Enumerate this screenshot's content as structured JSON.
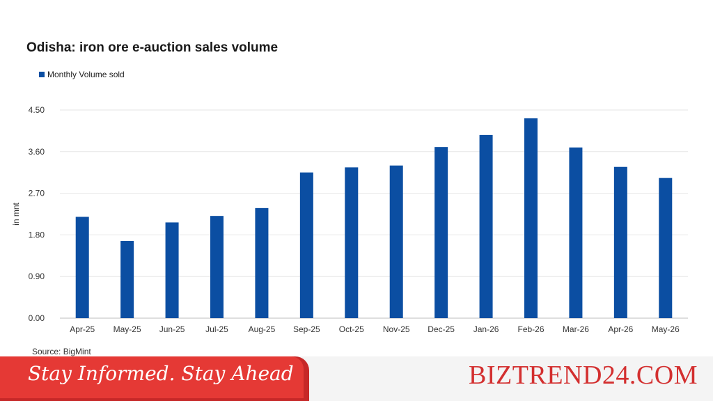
{
  "chart_data": {
    "type": "bar",
    "title": "Odisha: iron ore e-auction sales volume",
    "ylabel": "in mnt",
    "xlabel": "",
    "source": "Source: BigMint",
    "categories": [
      "Apr-25",
      "May-25",
      "Jun-25",
      "Jul-25",
      "Aug-25",
      "Sep-25",
      "Oct-25",
      "Nov-25",
      "Dec-25",
      "Jan-26",
      "Feb-26",
      "Mar-26",
      "Apr-26",
      "May-26"
    ],
    "series": [
      {
        "name": "Monthly Volume sold",
        "values": [
          2.19,
          1.67,
          2.07,
          2.21,
          2.38,
          3.15,
          3.26,
          3.3,
          3.7,
          3.96,
          4.32,
          3.69,
          3.27,
          3.03
        ]
      }
    ],
    "yticks": [
      "0.00",
      "0.90",
      "1.80",
      "2.70",
      "3.60",
      "4.50"
    ],
    "ylim": [
      0,
      4.5
    ],
    "grid": true,
    "legend_position": "top-left",
    "colors": {
      "bar": "#0b4ea2",
      "grid": "#e6e6e6"
    }
  },
  "footer": {
    "tagline": "Stay Informed. Stay Ahead",
    "brand": "BIZTREND24.COM"
  }
}
